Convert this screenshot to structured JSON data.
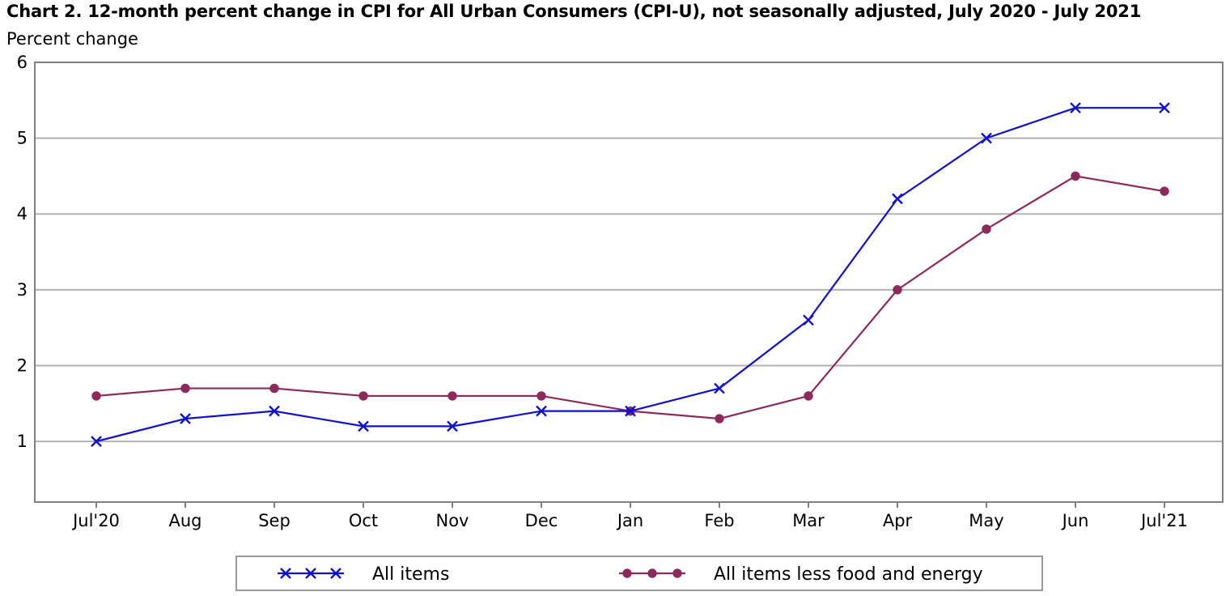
{
  "chart_data": {
    "type": "line",
    "title": "Chart 2. 12-month percent change in CPI for All Urban Consumers (CPI-U), not seasonally adjusted, July 2020 - July 2021",
    "ylabel": "Percent change",
    "xlabel": "",
    "categories": [
      "Jul'20",
      "Aug",
      "Sep",
      "Oct",
      "Nov",
      "Dec",
      "Jan",
      "Feb",
      "Mar",
      "Apr",
      "May",
      "Jun",
      "Jul'21"
    ],
    "ylim": [
      0.2,
      6
    ],
    "yticks": [
      1,
      2,
      3,
      4,
      5,
      6
    ],
    "grid": true,
    "legend_position": "bottom",
    "series": [
      {
        "name": "All items",
        "color": "#1010d0",
        "marker": "x",
        "values": [
          1.0,
          1.3,
          1.4,
          1.2,
          1.2,
          1.4,
          1.4,
          1.7,
          2.6,
          4.2,
          5.0,
          5.4,
          5.4
        ]
      },
      {
        "name": "All items less food and energy",
        "color": "#8c2a5c",
        "marker": "circle",
        "values": [
          1.6,
          1.7,
          1.7,
          1.6,
          1.6,
          1.6,
          1.4,
          1.3,
          1.6,
          3.0,
          3.8,
          4.5,
          4.3
        ]
      }
    ]
  }
}
